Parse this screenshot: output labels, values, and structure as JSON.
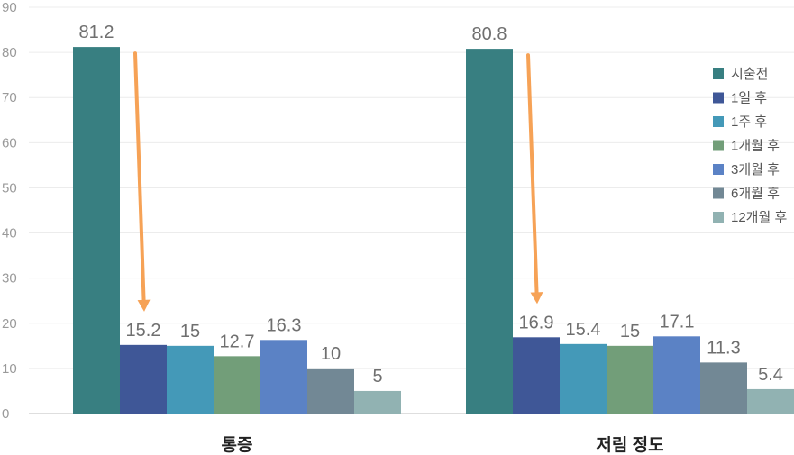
{
  "chart_data": {
    "type": "bar",
    "categories": [
      "통증",
      "저림 정도"
    ],
    "series": [
      {
        "name": "시술전",
        "values": [
          81.2,
          80.8
        ],
        "color": "#387f81"
      },
      {
        "name": "1일 후",
        "values": [
          15.2,
          16.9
        ],
        "color": "#3f5797"
      },
      {
        "name": "1주 후",
        "values": [
          15,
          15.4
        ],
        "color": "#4499b8"
      },
      {
        "name": "1개월 후",
        "values": [
          12.7,
          15
        ],
        "color": "#729e79"
      },
      {
        "name": "3개월 후",
        "values": [
          16.3,
          17.1
        ],
        "color": "#5b82c5"
      },
      {
        "name": "6개월 후",
        "values": [
          10,
          11.3
        ],
        "color": "#728895"
      },
      {
        "name": "12개월 후",
        "values": [
          5,
          5.4
        ],
        "color": "#91b2b2"
      }
    ],
    "ylim": [
      0,
      90
    ],
    "yticks": [
      0,
      10,
      20,
      30,
      40,
      50,
      60,
      70,
      80,
      90
    ],
    "grid": true,
    "legend_position": "right",
    "annotations": [
      {
        "type": "arrow",
        "from_category": "통증",
        "from_series": "시술전",
        "to_series": "1일 후",
        "color": "#f6a256"
      },
      {
        "type": "arrow",
        "from_category": "저림 정도",
        "from_series": "시술전",
        "to_series": "1일 후",
        "color": "#f6a256"
      }
    ]
  }
}
